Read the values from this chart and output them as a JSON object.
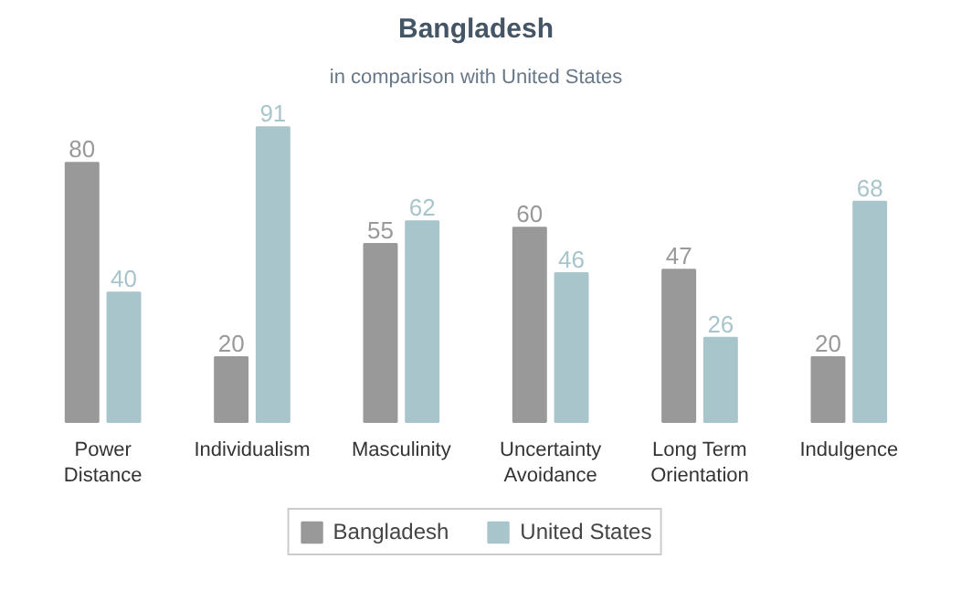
{
  "chart_data": {
    "type": "bar",
    "title": "Bangladesh",
    "subtitle": "in comparison with United States",
    "categories": [
      "Power Distance",
      "Individualism",
      "Masculinity",
      "Uncertainty Avoidance",
      "Long Term Orientation",
      "Indulgence"
    ],
    "series": [
      {
        "name": "Bangladesh",
        "color": "#999999",
        "values": [
          80,
          20,
          55,
          60,
          47,
          20
        ]
      },
      {
        "name": "United States",
        "color": "#a9c5cc",
        "values": [
          40,
          91,
          62,
          46,
          26,
          68
        ]
      }
    ],
    "data_labels": true,
    "legend": "bottom"
  }
}
